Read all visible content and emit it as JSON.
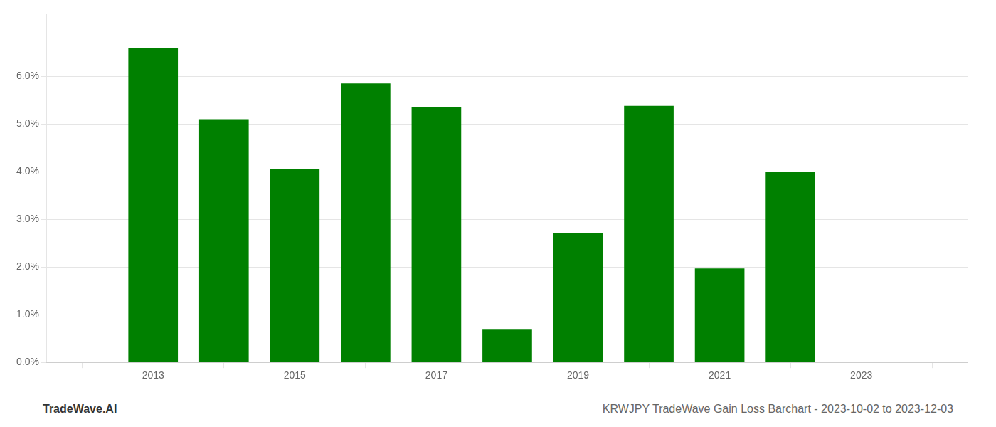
{
  "chart_data": {
    "type": "bar",
    "x": [
      2013,
      2014,
      2015,
      2016,
      2017,
      2018,
      2019,
      2020,
      2021,
      2022
    ],
    "values": [
      0.066,
      0.051,
      0.0405,
      0.0585,
      0.0535,
      0.007,
      0.0272,
      0.0538,
      0.0197,
      0.04
    ],
    "color": "#008000",
    "xlim": [
      2011.5,
      2024.5
    ],
    "xticks": [
      2013,
      2015,
      2017,
      2019,
      2021,
      2023
    ],
    "ylim": [
      0,
      0.073
    ],
    "yticks": [
      {
        "value": 0.0,
        "label": "0.0%"
      },
      {
        "value": 0.01,
        "label": "1.0%"
      },
      {
        "value": 0.02,
        "label": "2.0%"
      },
      {
        "value": 0.03,
        "label": "3.0%"
      },
      {
        "value": 0.04,
        "label": "4.0%"
      },
      {
        "value": 0.05,
        "label": "5.0%"
      },
      {
        "value": 0.06,
        "label": "6.0%"
      }
    ],
    "grid": true,
    "annotations": [
      "TradeWave.AI",
      "KRWJPY TradeWave Gain Loss Barchart - 2023-10-02 to 2023-12-03"
    ]
  }
}
